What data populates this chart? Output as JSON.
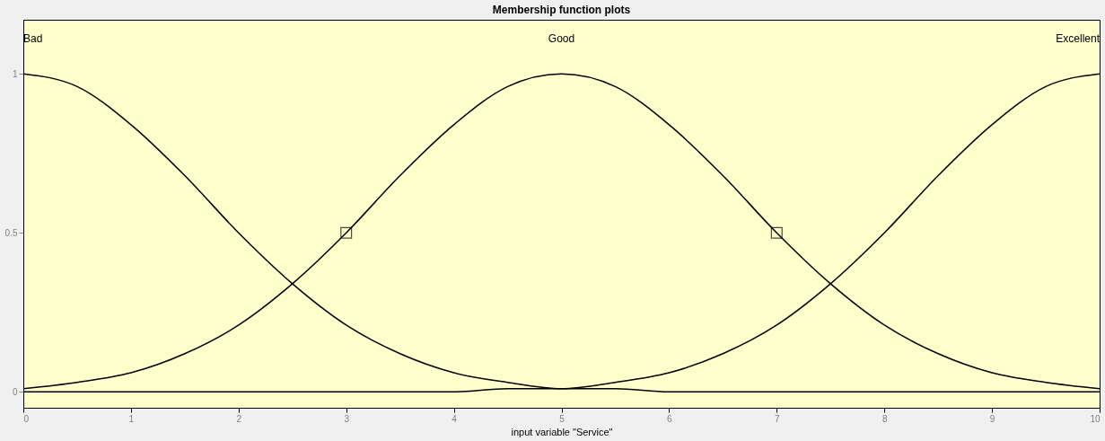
{
  "chart_data": {
    "type": "line",
    "title": "Membership function plots",
    "xlabel": "input variable \"Service\"",
    "x": [
      0,
      0.5,
      1,
      1.5,
      2,
      2.5,
      3,
      3.5,
      4,
      4.5,
      5,
      5.5,
      6,
      6.5,
      7,
      7.5,
      8,
      8.5,
      9,
      9.5,
      10
    ],
    "series": [
      {
        "name": "Bad",
        "color": "#000000",
        "values": [
          1,
          0.96,
          0.84,
          0.68,
          0.5,
          0.34,
          0.21,
          0.12,
          0.06,
          0.03,
          0.01,
          0.01,
          0,
          0,
          0,
          0,
          0,
          0,
          0,
          0,
          0
        ]
      },
      {
        "name": "Good",
        "color": "#000000",
        "values": [
          0.01,
          0.03,
          0.06,
          0.12,
          0.21,
          0.34,
          0.5,
          0.68,
          0.84,
          0.96,
          1,
          0.96,
          0.84,
          0.68,
          0.5,
          0.34,
          0.21,
          0.12,
          0.06,
          0.03,
          0.01
        ]
      },
      {
        "name": "Excellent",
        "color": "#000000",
        "values": [
          0,
          0,
          0,
          0,
          0,
          0,
          0,
          0,
          0,
          0.01,
          0.01,
          0.03,
          0.06,
          0.12,
          0.21,
          0.34,
          0.5,
          0.68,
          0.84,
          0.96,
          1
        ]
      },
      {
        "type": "scatter",
        "marker": "square",
        "color": "#000000",
        "x": [
          3,
          7
        ],
        "values": [
          0.5,
          0.5
        ]
      }
    ],
    "xlim": [
      0,
      10
    ],
    "xticks": [
      0,
      1,
      2,
      3,
      4,
      5,
      6,
      7,
      8,
      9,
      10
    ],
    "ylim": [
      -0.05,
      1.17
    ],
    "yticks": [
      0,
      0.5,
      1
    ],
    "line_style": "solid"
  }
}
